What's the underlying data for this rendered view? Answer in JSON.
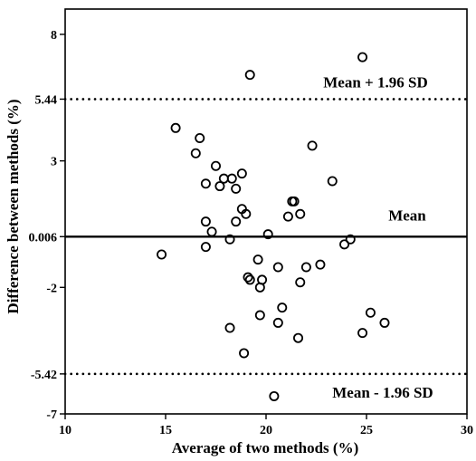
{
  "chart_data": {
    "type": "scatter",
    "title": "",
    "xlabel": "Average of two methods (%)",
    "ylabel": "Difference between methods (%)",
    "xlim": [
      10,
      30
    ],
    "ylim": [
      -7,
      9
    ],
    "xticks": [
      "10",
      "15",
      "20",
      "25",
      "30"
    ],
    "yticks": [
      {
        "value": 8,
        "label": "8"
      },
      {
        "value": 5.44,
        "label": "5.44"
      },
      {
        "value": 3,
        "label": "3"
      },
      {
        "value": 0.006,
        "label": "0.006"
      },
      {
        "value": -2,
        "label": "-2"
      },
      {
        "value": -5.42,
        "label": "-5.42"
      },
      {
        "value": -7,
        "label": "-7"
      }
    ],
    "reference_lines": [
      {
        "value": 5.44,
        "style": "dotted",
        "label": "Mean + 1.96 SD"
      },
      {
        "value": 0.006,
        "style": "solid",
        "label": "Mean"
      },
      {
        "value": -5.42,
        "style": "dotted",
        "label": "Mean - 1.96 SD"
      }
    ],
    "grid": false,
    "marker": "open-circle",
    "points": [
      {
        "x": 24.8,
        "y": 7.1
      },
      {
        "x": 19.2,
        "y": 6.4
      },
      {
        "x": 15.5,
        "y": 4.3
      },
      {
        "x": 16.7,
        "y": 3.9
      },
      {
        "x": 16.5,
        "y": 3.3
      },
      {
        "x": 22.3,
        "y": 3.6
      },
      {
        "x": 17.5,
        "y": 2.8
      },
      {
        "x": 17.0,
        "y": 2.1
      },
      {
        "x": 17.7,
        "y": 2.0
      },
      {
        "x": 17.9,
        "y": 2.3
      },
      {
        "x": 18.3,
        "y": 2.3
      },
      {
        "x": 18.8,
        "y": 2.5
      },
      {
        "x": 18.5,
        "y": 1.9
      },
      {
        "x": 23.3,
        "y": 2.2
      },
      {
        "x": 21.3,
        "y": 1.4
      },
      {
        "x": 21.4,
        "y": 1.4
      },
      {
        "x": 18.8,
        "y": 1.1
      },
      {
        "x": 19.0,
        "y": 0.9
      },
      {
        "x": 21.1,
        "y": 0.8
      },
      {
        "x": 21.7,
        "y": 0.9
      },
      {
        "x": 18.5,
        "y": 0.6
      },
      {
        "x": 17.0,
        "y": 0.6
      },
      {
        "x": 17.3,
        "y": 0.2
      },
      {
        "x": 20.1,
        "y": 0.1
      },
      {
        "x": 18.2,
        "y": -0.1
      },
      {
        "x": 17.0,
        "y": -0.4
      },
      {
        "x": 14.8,
        "y": -0.7
      },
      {
        "x": 23.9,
        "y": -0.3
      },
      {
        "x": 24.2,
        "y": -0.1
      },
      {
        "x": 19.6,
        "y": -0.9
      },
      {
        "x": 20.6,
        "y": -1.2
      },
      {
        "x": 22.0,
        "y": -1.2
      },
      {
        "x": 22.7,
        "y": -1.1
      },
      {
        "x": 19.1,
        "y": -1.6
      },
      {
        "x": 19.2,
        "y": -1.7
      },
      {
        "x": 19.8,
        "y": -1.7
      },
      {
        "x": 19.7,
        "y": -2.0
      },
      {
        "x": 21.7,
        "y": -1.8
      },
      {
        "x": 20.8,
        "y": -2.8
      },
      {
        "x": 19.7,
        "y": -3.1
      },
      {
        "x": 20.6,
        "y": -3.4
      },
      {
        "x": 25.2,
        "y": -3.0
      },
      {
        "x": 25.9,
        "y": -3.4
      },
      {
        "x": 18.2,
        "y": -3.6
      },
      {
        "x": 24.8,
        "y": -3.8
      },
      {
        "x": 21.6,
        "y": -4.0
      },
      {
        "x": 18.9,
        "y": -4.6
      },
      {
        "x": 20.4,
        "y": -6.3
      }
    ]
  }
}
